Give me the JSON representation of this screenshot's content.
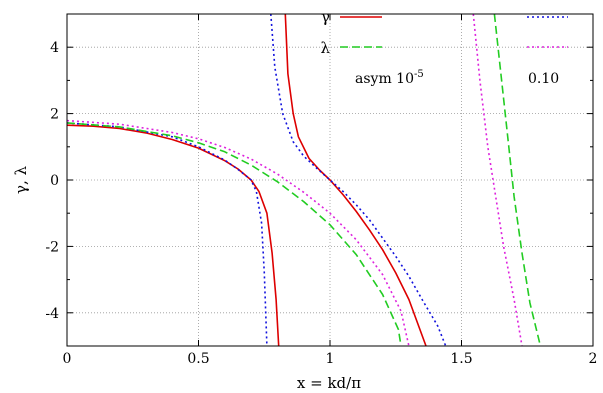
{
  "chart_data": {
    "type": "line",
    "xlabel": "x = kd/π",
    "ylabel": "γ, λ",
    "xlim": [
      0,
      2
    ],
    "ylim": [
      -5,
      5
    ],
    "xticks": [
      0,
      0.5,
      1,
      1.5,
      2
    ],
    "xtick_labels": [
      "0",
      "0.5",
      "1",
      "1.5",
      "2"
    ],
    "yticks": [
      -4,
      -2,
      0,
      2,
      4
    ],
    "ytick_labels": [
      "-4",
      "-2",
      "0",
      "2",
      "4"
    ],
    "grid": true,
    "legend_placement": "top-right",
    "legend": {
      "rows": [
        "γ",
        "λ"
      ],
      "col1_label": "asym 10",
      "col1_exp": "-5",
      "col2_label": "0.10"
    },
    "colors": {
      "red": "#dd0000",
      "green": "#22cc22",
      "blue": "#1111dd",
      "magenta": "#dd22dd"
    },
    "series": [
      {
        "color": "red",
        "dash": "solid",
        "segments": [
          [
            [
              0,
              1.65
            ],
            [
              0.1,
              1.62
            ],
            [
              0.2,
              1.55
            ],
            [
              0.3,
              1.42
            ],
            [
              0.4,
              1.22
            ],
            [
              0.5,
              0.96
            ],
            [
              0.6,
              0.58
            ],
            [
              0.65,
              0.33
            ],
            [
              0.7,
              0.0
            ],
            [
              0.73,
              -0.35
            ],
            [
              0.76,
              -1.0
            ],
            [
              0.78,
              -2.2
            ],
            [
              0.795,
              -3.6
            ],
            [
              0.805,
              -5.0
            ]
          ],
          [
            [
              0.83,
              5.0
            ],
            [
              0.84,
              3.2
            ],
            [
              0.86,
              2.0
            ],
            [
              0.88,
              1.3
            ],
            [
              0.92,
              0.65
            ],
            [
              0.96,
              0.3
            ],
            [
              1.0,
              0.0
            ],
            [
              1.05,
              -0.45
            ],
            [
              1.1,
              -0.95
            ],
            [
              1.15,
              -1.5
            ],
            [
              1.2,
              -2.1
            ],
            [
              1.25,
              -2.8
            ],
            [
              1.3,
              -3.6
            ],
            [
              1.365,
              -5.0
            ]
          ]
        ]
      },
      {
        "color": "blue",
        "dash": "dotted",
        "segments": [
          [
            [
              0,
              1.72
            ],
            [
              0.2,
              1.6
            ],
            [
              0.4,
              1.3
            ],
            [
              0.5,
              1.0
            ],
            [
              0.6,
              0.6
            ],
            [
              0.65,
              0.32
            ],
            [
              0.7,
              0.0
            ],
            [
              0.72,
              -0.35
            ],
            [
              0.74,
              -1.3
            ],
            [
              0.75,
              -2.8
            ],
            [
              0.76,
              -5.0
            ]
          ],
          [
            [
              0.775,
              5.0
            ],
            [
              0.79,
              3.4
            ],
            [
              0.82,
              2.0
            ],
            [
              0.86,
              1.15
            ],
            [
              0.9,
              0.72
            ],
            [
              0.95,
              0.35
            ],
            [
              1.0,
              0.0
            ],
            [
              1.05,
              -0.35
            ],
            [
              1.1,
              -0.75
            ],
            [
              1.15,
              -1.2
            ],
            [
              1.2,
              -1.75
            ],
            [
              1.25,
              -2.3
            ],
            [
              1.3,
              -2.9
            ],
            [
              1.35,
              -3.6
            ],
            [
              1.41,
              -4.4
            ],
            [
              1.44,
              -5.0
            ]
          ]
        ]
      },
      {
        "color": "green",
        "dash": "dashed",
        "segments": [
          [
            [
              0,
              1.72
            ],
            [
              0.2,
              1.6
            ],
            [
              0.4,
              1.33
            ],
            [
              0.5,
              1.12
            ],
            [
              0.6,
              0.85
            ],
            [
              0.7,
              0.45
            ],
            [
              0.8,
              -0.05
            ],
            [
              0.9,
              -0.65
            ],
            [
              1.0,
              -1.35
            ],
            [
              1.1,
              -2.25
            ],
            [
              1.2,
              -3.45
            ],
            [
              1.26,
              -4.5
            ],
            [
              1.27,
              -5.0
            ]
          ],
          [
            [
              1.625,
              5.0
            ],
            [
              1.65,
              3.2
            ],
            [
              1.68,
              1.0
            ],
            [
              1.7,
              -0.5
            ],
            [
              1.73,
              -2.2
            ],
            [
              1.76,
              -3.7
            ],
            [
              1.8,
              -5.0
            ]
          ]
        ]
      },
      {
        "color": "magenta",
        "dash": "dotted",
        "segments": [
          [
            [
              0,
              1.79
            ],
            [
              0.2,
              1.68
            ],
            [
              0.4,
              1.43
            ],
            [
              0.5,
              1.24
            ],
            [
              0.6,
              0.98
            ],
            [
              0.7,
              0.63
            ],
            [
              0.8,
              0.18
            ],
            [
              0.9,
              -0.37
            ],
            [
              1.0,
              -1.0
            ],
            [
              1.1,
              -1.8
            ],
            [
              1.2,
              -2.85
            ],
            [
              1.27,
              -3.95
            ],
            [
              1.3,
              -5.0
            ]
          ],
          [
            [
              1.545,
              5.0
            ],
            [
              1.57,
              3.0
            ],
            [
              1.6,
              1.0
            ],
            [
              1.63,
              -0.5
            ],
            [
              1.66,
              -2.0
            ],
            [
              1.7,
              -3.6
            ],
            [
              1.73,
              -5.0
            ]
          ]
        ]
      }
    ]
  }
}
